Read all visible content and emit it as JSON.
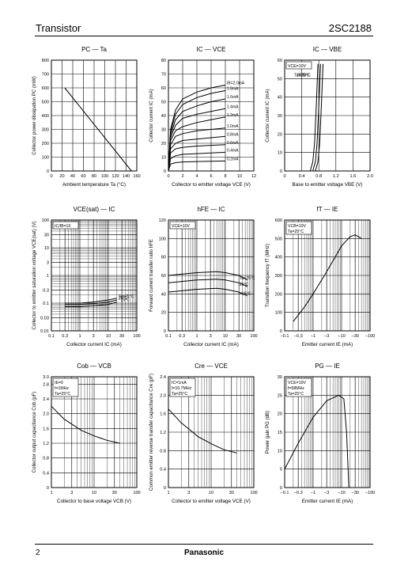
{
  "header": {
    "category": "Transistor",
    "part_number": "2SC2188"
  },
  "footer": {
    "page": "2",
    "brand": "Panasonic"
  },
  "chart_data": [
    {
      "type": "line",
      "title": "PC — Ta",
      "xlabel": "Ambient temperature  Ta  (°C)",
      "ylabel": "Collector power dissipation  PC  (mW)",
      "x_ticks": [
        "0",
        "20",
        "40",
        "60",
        "80",
        "100",
        "120",
        "140",
        "160"
      ],
      "y_ticks": [
        "0",
        "100",
        "200",
        "300",
        "400",
        "500",
        "600",
        "700",
        "800"
      ],
      "xlim": [
        0,
        160
      ],
      "ylim": [
        0,
        800
      ],
      "grid": true,
      "series": [
        {
          "x": [
            25,
            150
          ],
          "y": [
            600,
            0
          ]
        }
      ],
      "annotations": []
    },
    {
      "type": "line",
      "title": "IC — VCE",
      "xlabel": "Collector to emitter voltage  VCE  (V)",
      "ylabel": "Collector current  IC  (mA)",
      "x_ticks": [
        "0",
        "2",
        "4",
        "6",
        "8",
        "10",
        "12"
      ],
      "y_ticks": [
        "0",
        "10",
        "20",
        "30",
        "40",
        "50",
        "60",
        "70",
        "80"
      ],
      "xlim": [
        0,
        12
      ],
      "ylim": [
        0,
        80
      ],
      "grid": true,
      "series": [
        {
          "name": "IB=2.0mA",
          "x": [
            0,
            0.3,
            1,
            2,
            4,
            6,
            8
          ],
          "y": [
            0,
            30,
            44,
            52,
            57,
            60,
            62
          ]
        },
        {
          "name": "1.8mA",
          "x": [
            0,
            0.3,
            1,
            2,
            4,
            6,
            8
          ],
          "y": [
            0,
            28,
            41,
            48,
            53,
            56,
            58
          ]
        },
        {
          "name": "1.6mA",
          "x": [
            0,
            0.3,
            1,
            2,
            4,
            6,
            8
          ],
          "y": [
            0,
            26,
            37,
            43,
            47,
            50,
            52
          ]
        },
        {
          "name": "1.4mA",
          "x": [
            0,
            0.3,
            1,
            2,
            4,
            6,
            8
          ],
          "y": [
            0,
            24,
            33,
            38,
            41,
            43,
            45
          ]
        },
        {
          "name": "1.2mA",
          "x": [
            0,
            0.3,
            1,
            2,
            4,
            6,
            8
          ],
          "y": [
            0,
            22,
            29,
            32,
            35,
            37,
            39
          ]
        },
        {
          "name": "1.0mA",
          "x": [
            0,
            0.3,
            1,
            2,
            4,
            6,
            8
          ],
          "y": [
            0,
            19,
            25,
            27,
            29,
            30,
            31
          ]
        },
        {
          "name": "0.8mA",
          "x": [
            0,
            0.3,
            1,
            2,
            4,
            6,
            8
          ],
          "y": [
            0,
            16,
            20,
            22,
            23,
            24,
            25
          ]
        },
        {
          "name": "0.6mA",
          "x": [
            0,
            0.3,
            1,
            2,
            4,
            6,
            8
          ],
          "y": [
            0,
            13,
            16,
            17,
            18,
            18.5,
            19
          ]
        },
        {
          "name": "0.4mA",
          "x": [
            0,
            0.3,
            1,
            2,
            4,
            6,
            8
          ],
          "y": [
            0,
            9,
            11,
            12,
            12.5,
            13,
            13.5
          ]
        },
        {
          "name": "0.2mA",
          "x": [
            0,
            0.3,
            1,
            2,
            4,
            6,
            8
          ],
          "y": [
            0,
            5,
            6,
            6.5,
            6.8,
            7,
            7.2
          ]
        }
      ],
      "annotations": []
    },
    {
      "type": "line",
      "title": "IC — VBE",
      "xlabel": "Base to emitter voltage  VBE  (V)",
      "ylabel": "Collector current  IC  (mA)",
      "x_ticks": [
        "0",
        "0.4",
        "0.8",
        "1.2",
        "1.6",
        "2.0"
      ],
      "y_ticks": [
        "0",
        "10",
        "20",
        "30",
        "40",
        "50",
        "60"
      ],
      "xlim": [
        0,
        2
      ],
      "ylim": [
        0,
        60
      ],
      "grid": true,
      "series": [
        {
          "name": "Ta=75°C",
          "x": [
            0.6,
            0.66,
            0.7,
            0.74,
            0.78
          ],
          "y": [
            0,
            5,
            15,
            35,
            58
          ]
        },
        {
          "name": "25°C",
          "x": [
            0.66,
            0.72,
            0.76,
            0.8,
            0.84
          ],
          "y": [
            0,
            5,
            15,
            35,
            58
          ]
        },
        {
          "name": "−25°C",
          "x": [
            0.72,
            0.78,
            0.82,
            0.86,
            0.9
          ],
          "y": [
            0,
            5,
            15,
            35,
            58
          ]
        }
      ],
      "annotations": [
        "VCE=10V"
      ]
    },
    {
      "type": "line",
      "title": "VCE(sat) — IC",
      "xlabel": "Collector current  IC  (mA)",
      "ylabel": "Collector to emitter saturation voltage  VCE(sat)  (V)",
      "x_ticks": [
        "0.1",
        "0.3",
        "1",
        "3",
        "10",
        "30",
        "100"
      ],
      "y_ticks": [
        "0.01",
        "0.03",
        "0.1",
        "0.3",
        "1",
        "3",
        "10",
        "30",
        "100"
      ],
      "xlim": [
        0.1,
        100
      ],
      "ylim": [
        0.01,
        100
      ],
      "log_x": true,
      "log_y": true,
      "grid": true,
      "series": [
        {
          "name": "Ta=75°C",
          "x": [
            0.3,
            1,
            3,
            10,
            20
          ],
          "y": [
            0.1,
            0.1,
            0.11,
            0.13,
            0.15
          ]
        },
        {
          "name": "25°C",
          "x": [
            0.3,
            1,
            3,
            10,
            20
          ],
          "y": [
            0.09,
            0.09,
            0.095,
            0.11,
            0.13
          ]
        },
        {
          "name": "−25°C",
          "x": [
            0.3,
            1,
            3,
            10,
            20
          ],
          "y": [
            0.075,
            0.075,
            0.08,
            0.09,
            0.11
          ]
        }
      ],
      "annotations": [
        "IC/IB=10"
      ]
    },
    {
      "type": "line",
      "title": "hFE — IC",
      "xlabel": "Collector current  IC  (mA)",
      "ylabel": "Forward current transfer ratio  hFE",
      "x_ticks": [
        "0.1",
        "0.3",
        "1",
        "3",
        "10",
        "30",
        "100"
      ],
      "y_ticks": [
        "0",
        "20",
        "40",
        "60",
        "80",
        "100",
        "120"
      ],
      "xlim": [
        0.1,
        100
      ],
      "ylim": [
        0,
        120
      ],
      "log_x": true,
      "grid": true,
      "series": [
        {
          "name": "Ta=75°C",
          "x": [
            0.1,
            1,
            5,
            10,
            30,
            60
          ],
          "y": [
            60,
            63,
            64,
            63,
            60,
            55
          ]
        },
        {
          "name": "25°C",
          "x": [
            0.1,
            1,
            5,
            10,
            30,
            60
          ],
          "y": [
            52,
            55,
            56,
            55,
            52,
            48
          ]
        },
        {
          "name": "−25°C",
          "x": [
            0.1,
            1,
            5,
            10,
            30,
            60
          ],
          "y": [
            42,
            45,
            46,
            45,
            42,
            38
          ]
        }
      ],
      "annotations": [
        "VCE=10V"
      ]
    },
    {
      "type": "line",
      "title": "fT — IE",
      "xlabel": "Emitter current  IE  (mA)",
      "ylabel": "Transition frequency  fT  (MHz)",
      "x_ticks": [
        "−0.1",
        "−0.3",
        "−1",
        "−3",
        "−10",
        "−30",
        "−100"
      ],
      "y_ticks": [
        "0",
        "100",
        "200",
        "300",
        "400",
        "500",
        "600"
      ],
      "xlim": [
        -0.1,
        -100
      ],
      "ylim": [
        0,
        600
      ],
      "log_x": true,
      "grid": true,
      "series": [
        {
          "x": [
            -0.2,
            -0.5,
            -1,
            -3,
            -10,
            -20,
            -30,
            -50
          ],
          "y": [
            50,
            130,
            200,
            320,
            460,
            510,
            520,
            500
          ]
        }
      ],
      "annotations": [
        "VCB=10V",
        "Ta=25°C"
      ]
    },
    {
      "type": "line",
      "title": "Cob — VCB",
      "xlabel": "Collector to base voltage  VCB  (V)",
      "ylabel": "Collector output capacitance  Cob  (pF)",
      "x_ticks": [
        "1",
        "3",
        "10",
        "30",
        "100"
      ],
      "y_ticks": [
        "0",
        "0.4",
        "0.8",
        "1.2",
        "1.6",
        "2.0",
        "2.4",
        "2.8",
        "3.0"
      ],
      "xlim": [
        1,
        100
      ],
      "ylim": [
        0,
        3.0
      ],
      "log_x": true,
      "grid": true,
      "series": [
        {
          "x": [
            1,
            2,
            5,
            10,
            20,
            40
          ],
          "y": [
            2.2,
            1.85,
            1.55,
            1.4,
            1.28,
            1.2
          ]
        }
      ],
      "annotations": [
        "IE=0",
        "f=1MHz",
        "Ta=25°C"
      ]
    },
    {
      "type": "line",
      "title": "Cre — VCE",
      "xlabel": "Collector to emitter voltage  VCE  (V)",
      "ylabel": "Common emitter reverse transfer capacitance  Cre  (pF)",
      "x_ticks": [
        "1",
        "3",
        "10",
        "30",
        "100"
      ],
      "y_ticks": [
        "0",
        "0.4",
        "0.8",
        "1.2",
        "1.6",
        "2.0",
        "2.4"
      ],
      "xlim": [
        1,
        100
      ],
      "ylim": [
        0,
        2.4
      ],
      "log_x": true,
      "grid": true,
      "series": [
        {
          "x": [
            1,
            2,
            5,
            10,
            20,
            40
          ],
          "y": [
            1.7,
            1.4,
            1.1,
            0.95,
            0.82,
            0.75
          ]
        }
      ],
      "annotations": [
        "IC=1mA",
        "f=10.7MHz",
        "Ta=25°C"
      ]
    },
    {
      "type": "line",
      "title": "PG — IE",
      "xlabel": "Emitter current  IE  (mA)",
      "ylabel": "Power gain  PG  (dB)",
      "x_ticks": [
        "−0.1",
        "−0.3",
        "−1",
        "−3",
        "−10",
        "−30",
        "−100"
      ],
      "y_ticks": [
        "0",
        "5",
        "10",
        "15",
        "20",
        "25",
        "30"
      ],
      "xlim": [
        -0.1,
        -100
      ],
      "ylim": [
        0,
        30
      ],
      "log_x": true,
      "grid": true,
      "series": [
        {
          "x": [
            -0.1,
            -0.3,
            -1,
            -3,
            -8,
            -12,
            -15,
            -18
          ],
          "y": [
            5,
            12,
            19,
            23.5,
            25,
            24,
            15,
            0
          ]
        }
      ],
      "annotations": [
        "VCE=10V",
        "f=58MHz",
        "Ta=25°C"
      ]
    }
  ]
}
